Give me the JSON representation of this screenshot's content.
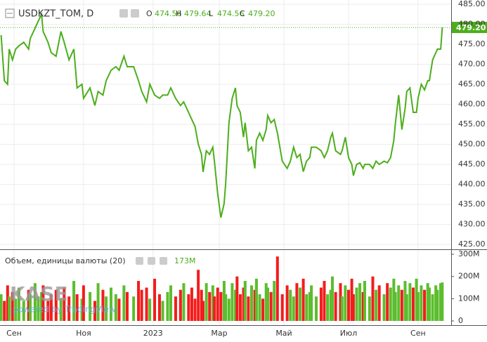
{
  "chart_data": [
    {
      "type": "line",
      "title": "USDKZT_TOM, D",
      "ohlc": [
        {
          "label": "O",
          "value": "474.56"
        },
        {
          "label": "H",
          "value": "479.64"
        },
        {
          "label": "L",
          "value": "474.56"
        },
        {
          "label": "C",
          "value": "479.20"
        }
      ],
      "last_value_label": "479.20",
      "color": "#4cae1c",
      "x": [
        -8,
        -6,
        -4,
        -3,
        -1,
        1,
        3,
        6,
        9,
        10,
        13,
        15,
        17,
        18,
        21,
        23,
        26,
        29,
        31,
        34,
        37,
        39,
        42,
        43,
        47,
        50,
        52,
        55,
        57,
        60,
        63,
        65,
        68,
        70,
        74,
        77,
        79,
        82,
        84,
        87,
        90,
        92,
        95,
        97,
        100,
        103,
        105,
        108,
        110,
        112,
        114,
        116,
        117,
        119,
        121,
        123,
        124,
        126,
        128,
        130,
        131,
        133,
        135,
        137,
        138,
        140,
        142,
        143,
        145,
        147,
        149,
        150,
        152,
        154,
        156,
        157,
        159,
        161,
        163,
        166,
        169,
        171,
        173,
        175,
        177,
        179,
        181,
        183,
        184,
        187,
        190,
        192,
        194,
        196,
        197,
        199,
        202,
        203,
        205,
        207,
        209,
        210,
        212,
        214,
        216,
        217,
        220,
        222,
        224,
        226,
        229,
        231,
        233,
        235,
        236,
        238,
        240,
        242,
        243,
        245,
        247,
        249,
        250,
        252,
        254,
        256,
        257,
        259,
        261,
        262,
        264,
        265
      ],
      "values": [
        477.3,
        465.9,
        465,
        473.8,
        471.1,
        473.8,
        474.6,
        475.5,
        473.8,
        476.4,
        479,
        480.8,
        482.5,
        478.2,
        475.5,
        472.9,
        472,
        478.2,
        475.5,
        471.1,
        473.8,
        464.1,
        465,
        461.5,
        464.1,
        459.7,
        463.2,
        462.3,
        465.9,
        468.5,
        469.4,
        468.5,
        472,
        469.4,
        469.4,
        465.9,
        463.2,
        460.6,
        465,
        462.3,
        461.5,
        462.3,
        462.3,
        464.1,
        461.5,
        459.7,
        460.6,
        458,
        456.2,
        454.5,
        450.1,
        447.5,
        443.1,
        448.4,
        447.5,
        449.3,
        445.8,
        437.8,
        431.7,
        435.2,
        440.4,
        455.4,
        461.5,
        464.1,
        459.7,
        458,
        451.8,
        455.4,
        448.4,
        449.3,
        444,
        451,
        452.8,
        451,
        453.7,
        457.2,
        455.4,
        456.2,
        452.8,
        445.8,
        444,
        445.8,
        449.3,
        446.7,
        447.5,
        443.2,
        445.8,
        446.7,
        449.3,
        449.3,
        448.4,
        446.7,
        448.4,
        451.8,
        452.8,
        448.4,
        447.5,
        448.4,
        451.8,
        446.7,
        445,
        442.2,
        445,
        445.4,
        444,
        445,
        445,
        444,
        445.8,
        445,
        445.8,
        445.4,
        446.7,
        451,
        455.4,
        462.3,
        453.7,
        459,
        463.2,
        464.1,
        458,
        458,
        461.5,
        465,
        463.6,
        465.9,
        465.9,
        471.1,
        472.9,
        473.8,
        473.8,
        479.2
      ],
      "xlim": [
        -8.7,
        270.5
      ],
      "xticks": [
        {
          "value": 0,
          "label": "Сен"
        },
        {
          "value": 43,
          "label": "Ноя"
        },
        {
          "value": 86,
          "label": "2023"
        },
        {
          "value": 127,
          "label": "Мар"
        },
        {
          "value": 167,
          "label": "Май"
        },
        {
          "value": 207,
          "label": "Июл"
        },
        {
          "value": 250,
          "label": "Сен"
        }
      ],
      "ylim": [
        423.8,
        486.05
      ],
      "yticks": [
        {
          "value": 425,
          "label": "425.00"
        },
        {
          "value": 430,
          "label": "430.00"
        },
        {
          "value": 435,
          "label": "435.00"
        },
        {
          "value": 440,
          "label": "440.00"
        },
        {
          "value": 445,
          "label": "445.00"
        },
        {
          "value": 450,
          "label": "450.00"
        },
        {
          "value": 455,
          "label": "455.00"
        },
        {
          "value": 460,
          "label": "460.00"
        },
        {
          "value": 465,
          "label": "465.00"
        },
        {
          "value": 470,
          "label": "470.00"
        },
        {
          "value": 475,
          "label": "475.00"
        },
        {
          "value": 480,
          "label": "480.00"
        },
        {
          "value": 485,
          "label": "485.00"
        }
      ],
      "grid": true
    },
    {
      "type": "bar",
      "title": "Объем, единицы валюты (20)",
      "last_value_label": "173M",
      "watermark": [
        "KASE",
        "powered by TradingView"
      ],
      "up_color": "#5cbd2e",
      "down_color": "#f41c1c",
      "x": [
        -8,
        -6,
        -4,
        -3,
        -1,
        1,
        3,
        6,
        9,
        10,
        13,
        15,
        17,
        18,
        21,
        23,
        26,
        29,
        31,
        34,
        37,
        39,
        42,
        43,
        47,
        50,
        52,
        55,
        57,
        60,
        63,
        65,
        68,
        70,
        74,
        77,
        79,
        82,
        84,
        87,
        90,
        92,
        95,
        97,
        100,
        103,
        105,
        108,
        110,
        112,
        114,
        116,
        117,
        119,
        121,
        123,
        124,
        126,
        128,
        130,
        131,
        133,
        135,
        137,
        138,
        140,
        142,
        143,
        145,
        147,
        149,
        150,
        152,
        154,
        156,
        157,
        159,
        161,
        163,
        166,
        169,
        171,
        173,
        175,
        177,
        179,
        181,
        183,
        184,
        187,
        190,
        192,
        194,
        196,
        197,
        199,
        202,
        203,
        205,
        207,
        209,
        210,
        212,
        214,
        216,
        217,
        220,
        222,
        224,
        226,
        229,
        231,
        233,
        235,
        236,
        238,
        240,
        242,
        243,
        245,
        247,
        249,
        250,
        252,
        254,
        256,
        257,
        259,
        261,
        262,
        264,
        265
      ],
      "values": [
        120,
        90,
        160,
        110,
        130,
        100,
        150,
        90,
        140,
        120,
        170,
        110,
        130,
        160,
        90,
        120,
        140,
        100,
        150,
        110,
        180,
        120,
        100,
        160,
        130,
        90,
        170,
        140,
        110,
        150,
        120,
        100,
        160,
        130,
        110,
        180,
        140,
        150,
        100,
        190,
        120,
        90,
        130,
        160,
        110,
        140,
        170,
        120,
        150,
        100,
        230,
        140,
        90,
        170,
        130,
        160,
        110,
        150,
        130,
        180,
        120,
        100,
        170,
        140,
        200,
        120,
        150,
        180,
        110,
        160,
        140,
        190,
        120,
        100,
        170,
        150,
        130,
        180,
        290,
        120,
        160,
        140,
        110,
        170,
        150,
        190,
        120,
        130,
        160,
        110,
        150,
        180,
        120,
        140,
        200,
        130,
        170,
        110,
        160,
        140,
        190,
        120,
        150,
        170,
        130,
        180,
        110,
        200,
        140,
        160,
        120,
        170,
        150,
        190,
        130,
        160,
        140,
        180,
        120,
        170,
        150,
        190,
        130,
        160,
        140,
        170,
        150,
        120,
        160,
        140,
        170,
        173
      ],
      "ylim": [
        -19,
        316
      ],
      "yticks": [
        0,
        {
          "value": 100,
          "label": "100M"
        },
        {
          "value": 200,
          "label": "200M"
        },
        {
          "value": 300,
          "label": "300M"
        }
      ]
    }
  ]
}
